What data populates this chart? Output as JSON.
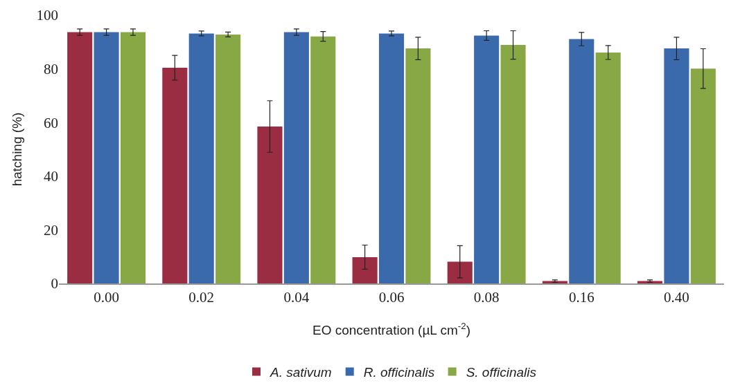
{
  "chart_data": {
    "type": "bar",
    "xlabel": "EO concentration (µL cm$^{-2}$)",
    "ylabel": "hatching (%)",
    "categories": [
      "0.00",
      "0.02",
      "0.04",
      "0.06",
      "0.08",
      "0.16",
      "0.40"
    ],
    "series": [
      {
        "name": "A. sativum",
        "color": "#9b2d42",
        "values": [
          93.7,
          80.4,
          58.5,
          9.8,
          8.1,
          0.9,
          0.9
        ],
        "errors": [
          1.2,
          4.6,
          9.6,
          4.5,
          6,
          0.4,
          0.4
        ]
      },
      {
        "name": "R. officinalis",
        "color": "#3a6aab",
        "values": [
          93.7,
          93.2,
          93.7,
          93.2,
          92.4,
          91.1,
          87.6
        ],
        "errors": [
          1.2,
          0.9,
          1.2,
          0.9,
          1.8,
          2.5,
          4.2
        ]
      },
      {
        "name": "S. officinalis",
        "color": "#87a845",
        "values": [
          93.7,
          92.8,
          92.1,
          87.6,
          88.9,
          86.1,
          80.1
        ],
        "errors": [
          1.2,
          0.9,
          1.8,
          4.2,
          5.3,
          2.6,
          7.4
        ]
      }
    ],
    "ylim": [
      0,
      100
    ],
    "yticks": [
      0,
      20,
      40,
      60,
      80,
      100
    ],
    "legend": "bottom"
  }
}
